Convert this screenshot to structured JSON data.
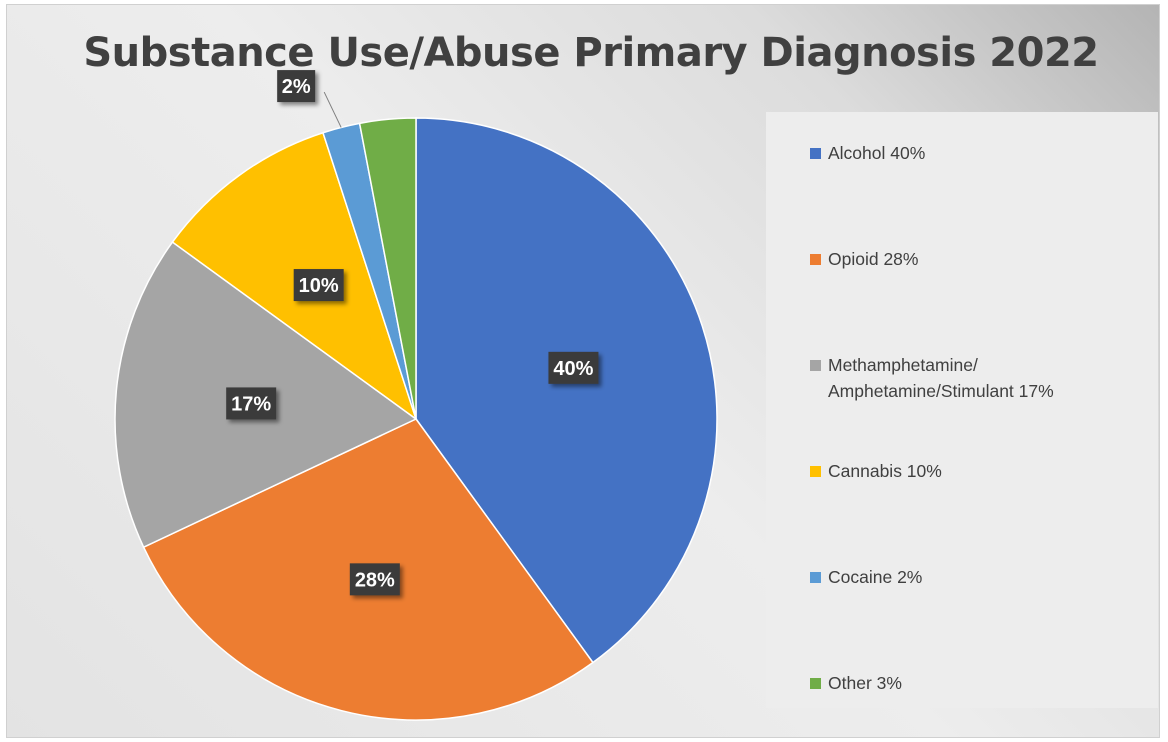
{
  "chart_data": {
    "type": "pie",
    "title": "Substance Use/Abuse Primary Diagnosis 2022",
    "slices": [
      {
        "label": "Alcohol 40%",
        "value": 40,
        "data_label": "40%",
        "color": "#4472c4"
      },
      {
        "label": "Opioid 28%",
        "value": 28,
        "data_label": "28%",
        "color": "#ed7d31"
      },
      {
        "label": "Methamphetamine/\nAmphetamine/Stimulant  17%",
        "value": 17,
        "data_label": "17%",
        "color": "#a5a5a5"
      },
      {
        "label": "Cannabis 10%",
        "value": 10,
        "data_label": "10%",
        "color": "#ffc000"
      },
      {
        "label": "Cocaine 2%",
        "value": 2,
        "data_label": "2%",
        "color": "#5b9bd5"
      },
      {
        "label": "Other 3%",
        "value": 3,
        "data_label": "",
        "color": "#70ad47"
      }
    ],
    "legend_position": "right"
  }
}
